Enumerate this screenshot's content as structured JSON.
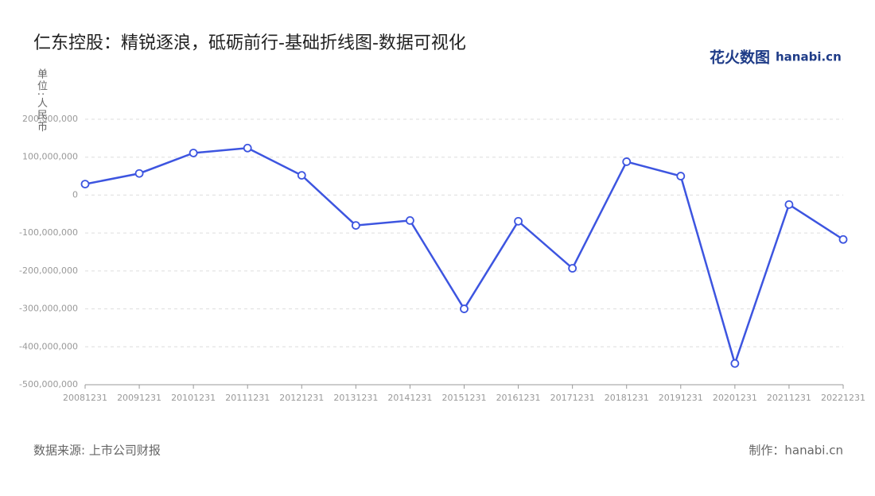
{
  "chart_data": {
    "type": "line",
    "title": "仁东控股：精锐逐浪，砥砺前行-基础折线图-数据可视化",
    "y_label": "单位:人民币",
    "source": "数据来源: 上市公司财报",
    "credit": "制作：hanabi.cn",
    "logo": "花火数图",
    "logo_sub": "hanabi.cn",
    "categories": [
      "20081231",
      "20091231",
      "20101231",
      "20111231",
      "20121231",
      "20131231",
      "20141231",
      "20151231",
      "20161231",
      "20171231",
      "20181231",
      "20191231",
      "20201231",
      "20211231",
      "20221231"
    ],
    "series": [
      {
        "name": "仁东控股",
        "color": "#3d55e0",
        "values": [
          29000000,
          57000000,
          111000000,
          124000000,
          52000000,
          -80000000,
          -67000000,
          -300000000,
          -69000000,
          -193000000,
          88000000,
          50000000,
          -444000000,
          -25000000,
          -117000000
        ]
      }
    ],
    "ylim": [
      -500000000,
      200000000
    ],
    "yticks": [
      {
        "value": -500000000,
        "label": "-500,000,000"
      },
      {
        "value": -400000000,
        "label": "-400,000,000"
      },
      {
        "value": -300000000,
        "label": "-300,000,000"
      },
      {
        "value": -200000000,
        "label": "-200,000,000"
      },
      {
        "value": -100000000,
        "label": "-100,000,000"
      },
      0,
      {
        "value": 100000000,
        "label": "100,000,000"
      },
      {
        "value": 200000000,
        "label": "200,000,000"
      }
    ],
    "grid": true
  }
}
